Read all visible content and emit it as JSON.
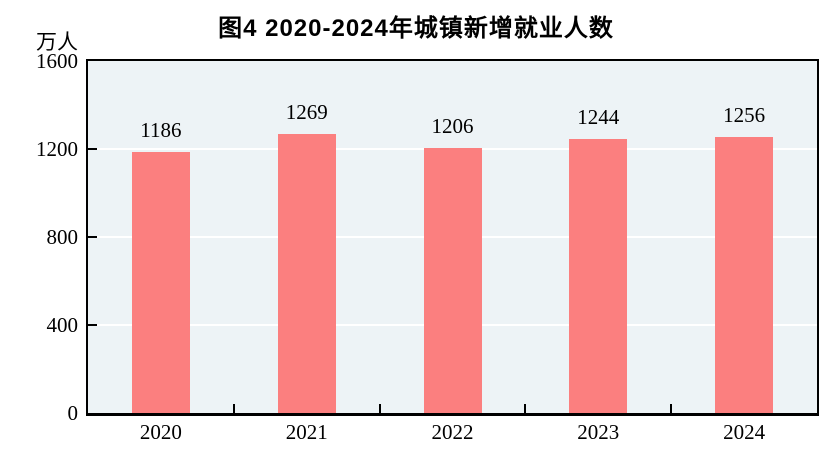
{
  "title": "图4  2020-2024年城镇新增就业人数",
  "y_axis_unit": "万人",
  "colors": {
    "bar": "#FB7F7F",
    "plot_background": "#EDF3F6",
    "gridline": "#FFFFFF",
    "axis": "#000000",
    "text": "#000000"
  },
  "chart_data": {
    "type": "bar",
    "title": "图4  2020-2024年城镇新增就业人数",
    "categories": [
      "2020",
      "2021",
      "2022",
      "2023",
      "2024"
    ],
    "values": [
      1186,
      1269,
      1206,
      1244,
      1256
    ],
    "xlabel": "",
    "ylabel": "万人",
    "ylim": [
      0,
      1600
    ],
    "yticks": [
      0,
      400,
      800,
      1200,
      1600
    ],
    "grid": true,
    "gridline_color": "white",
    "legend_position": "none",
    "bar_labels_shown": true
  }
}
